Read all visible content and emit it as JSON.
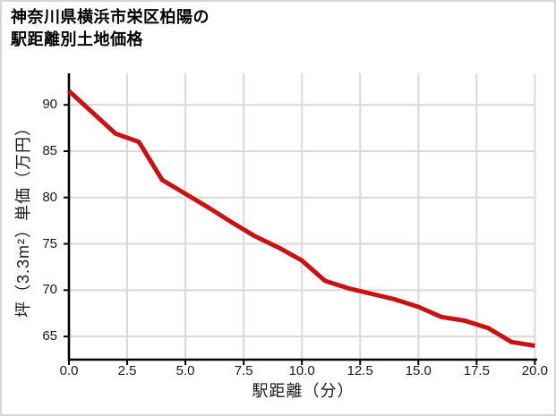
{
  "title": {
    "line1": "神奈川県横浜市栄区柏陽の",
    "line2": "駅距離別土地価格"
  },
  "chart_data": {
    "type": "line",
    "title": "神奈川県横浜市栄区柏陽の駅距離別土地価格",
    "xlabel": "駅距離（分）",
    "ylabel": "坪（3.3m²）単価（万円）",
    "series": [
      {
        "name": "駅距離別土地価格",
        "x": [
          0,
          1,
          2,
          3,
          4,
          5,
          6,
          7,
          8,
          9,
          10,
          11,
          12,
          13,
          14,
          15,
          16,
          17,
          18,
          19,
          20
        ],
        "values": [
          91.5,
          89.2,
          86.9,
          86.0,
          81.9,
          80.4,
          78.9,
          77.3,
          75.8,
          74.6,
          73.2,
          71.0,
          70.2,
          69.6,
          69.0,
          68.2,
          67.1,
          66.7,
          65.9,
          64.4,
          64.0
        ]
      }
    ],
    "xlim": [
      0,
      20.1
    ],
    "ylim": [
      62.5,
      93.4
    ],
    "x_ticks": [
      0,
      2.5,
      5,
      7.5,
      10,
      12.5,
      15,
      17.5,
      20
    ],
    "x_tick_labels": [
      "0.0",
      "2.5",
      "5.0",
      "7.5",
      "10.0",
      "12.5",
      "15.0",
      "17.5",
      "20.0"
    ],
    "y_ticks": [
      65,
      70,
      75,
      80,
      85,
      90
    ],
    "y_tick_labels": [
      "65",
      "70",
      "75",
      "80",
      "85",
      "90"
    ],
    "grid": true,
    "legend": "none",
    "colors": {
      "line": "#cc1111",
      "grid": "#d9d9d9",
      "axis": "#000000",
      "tick_label": "#1a1a1a",
      "title": "#000000",
      "background": "#ffffff",
      "frame_border": "#d6d6d6"
    }
  }
}
